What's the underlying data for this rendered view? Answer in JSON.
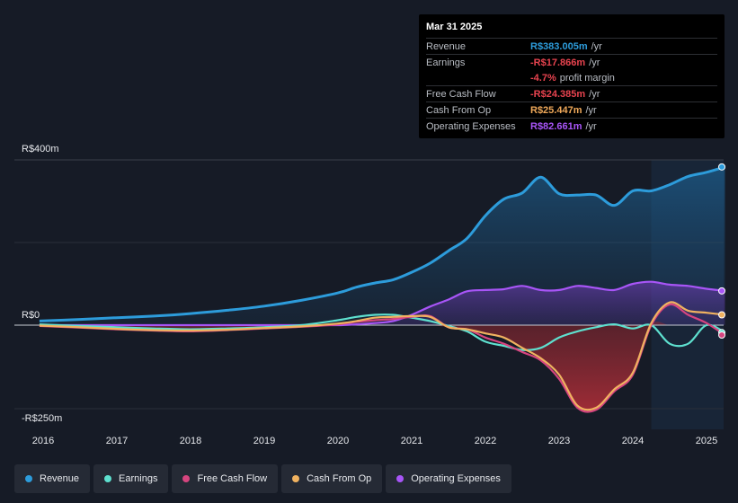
{
  "tooltip": {
    "date": "Mar 31 2025",
    "rows": [
      {
        "label": "Revenue",
        "value": "R$383.005m",
        "unit": "/yr",
        "color": "#2d9cdb"
      },
      {
        "label": "Earnings",
        "value": "-R$17.866m",
        "unit": "/yr",
        "color": "#e8434f"
      },
      {
        "label": "",
        "value": "-4.7%",
        "unit": "profit margin",
        "color": "#e8434f"
      },
      {
        "label": "Free Cash Flow",
        "value": "-R$24.385m",
        "unit": "/yr",
        "color": "#e8434f"
      },
      {
        "label": "Cash From Op",
        "value": "R$25.447m",
        "unit": "/yr",
        "color": "#f0a95a"
      },
      {
        "label": "Operating Expenses",
        "value": "R$82.661m",
        "unit": "/yr",
        "color": "#a855f7"
      }
    ]
  },
  "legend": [
    {
      "label": "Revenue",
      "color": "#2d9cdb"
    },
    {
      "label": "Earnings",
      "color": "#5ee0cf"
    },
    {
      "label": "Free Cash Flow",
      "color": "#d6457f"
    },
    {
      "label": "Cash From Op",
      "color": "#f0b260"
    },
    {
      "label": "Operating Expenses",
      "color": "#a855f7"
    }
  ],
  "chart_data": {
    "type": "area",
    "title": "",
    "ylabel": "",
    "xlabel": "",
    "ylim": [
      -250,
      400
    ],
    "y_tick_labels": [
      "R$400m",
      "R$0",
      "-R$250m"
    ],
    "x_tick_labels": [
      "2016",
      "2017",
      "2018",
      "2019",
      "2020",
      "2021",
      "2022",
      "2023",
      "2024",
      "2025"
    ],
    "forecast_shade_from": 2024.25,
    "x": [
      2015.95,
      2016.5,
      2017,
      2017.5,
      2018,
      2018.5,
      2019,
      2019.5,
      2020,
      2020.25,
      2020.5,
      2020.75,
      2021,
      2021.25,
      2021.5,
      2021.75,
      2022,
      2022.25,
      2022.5,
      2022.75,
      2023,
      2023.25,
      2023.5,
      2023.75,
      2024,
      2024.25,
      2024.5,
      2024.75,
      2025,
      2025.25
    ],
    "series": [
      {
        "name": "Revenue",
        "color": "#2d9cdb",
        "values": [
          10,
          14,
          18,
          22,
          28,
          36,
          46,
          60,
          78,
          92,
          102,
          110,
          128,
          150,
          180,
          210,
          265,
          305,
          320,
          358,
          318,
          315,
          315,
          290,
          325,
          325,
          340,
          360,
          370,
          383
        ]
      },
      {
        "name": "Earnings",
        "color": "#5ee0cf",
        "values": [
          2,
          -2,
          -5,
          -8,
          -10,
          -8,
          -5,
          0,
          12,
          20,
          25,
          25,
          18,
          10,
          -2,
          -15,
          -40,
          -50,
          -60,
          -55,
          -30,
          -15,
          -5,
          2,
          -8,
          0,
          -45,
          -45,
          0,
          -18
        ]
      },
      {
        "name": "Free Cash Flow",
        "color": "#d6457f",
        "values": [
          -2,
          -6,
          -10,
          -13,
          -15,
          -12,
          -8,
          -4,
          2,
          8,
          12,
          15,
          20,
          22,
          -5,
          -10,
          -30,
          -45,
          -65,
          -85,
          -130,
          -200,
          -205,
          -160,
          -120,
          0,
          50,
          25,
          5,
          -24
        ]
      },
      {
        "name": "Cash From Op",
        "color": "#f0b260",
        "values": [
          -1,
          -5,
          -9,
          -12,
          -13,
          -11,
          -7,
          -3,
          4,
          10,
          18,
          20,
          22,
          20,
          -5,
          -10,
          -20,
          -30,
          -55,
          -80,
          -120,
          -195,
          -200,
          -155,
          -115,
          5,
          55,
          35,
          30,
          25
        ]
      },
      {
        "name": "Operating Expenses",
        "color": "#a855f7",
        "values": [
          0,
          0,
          0,
          0,
          0,
          0,
          0,
          0,
          0,
          2,
          5,
          10,
          25,
          45,
          62,
          82,
          85,
          87,
          95,
          85,
          85,
          95,
          90,
          85,
          100,
          105,
          98,
          95,
          88,
          83
        ]
      }
    ]
  }
}
